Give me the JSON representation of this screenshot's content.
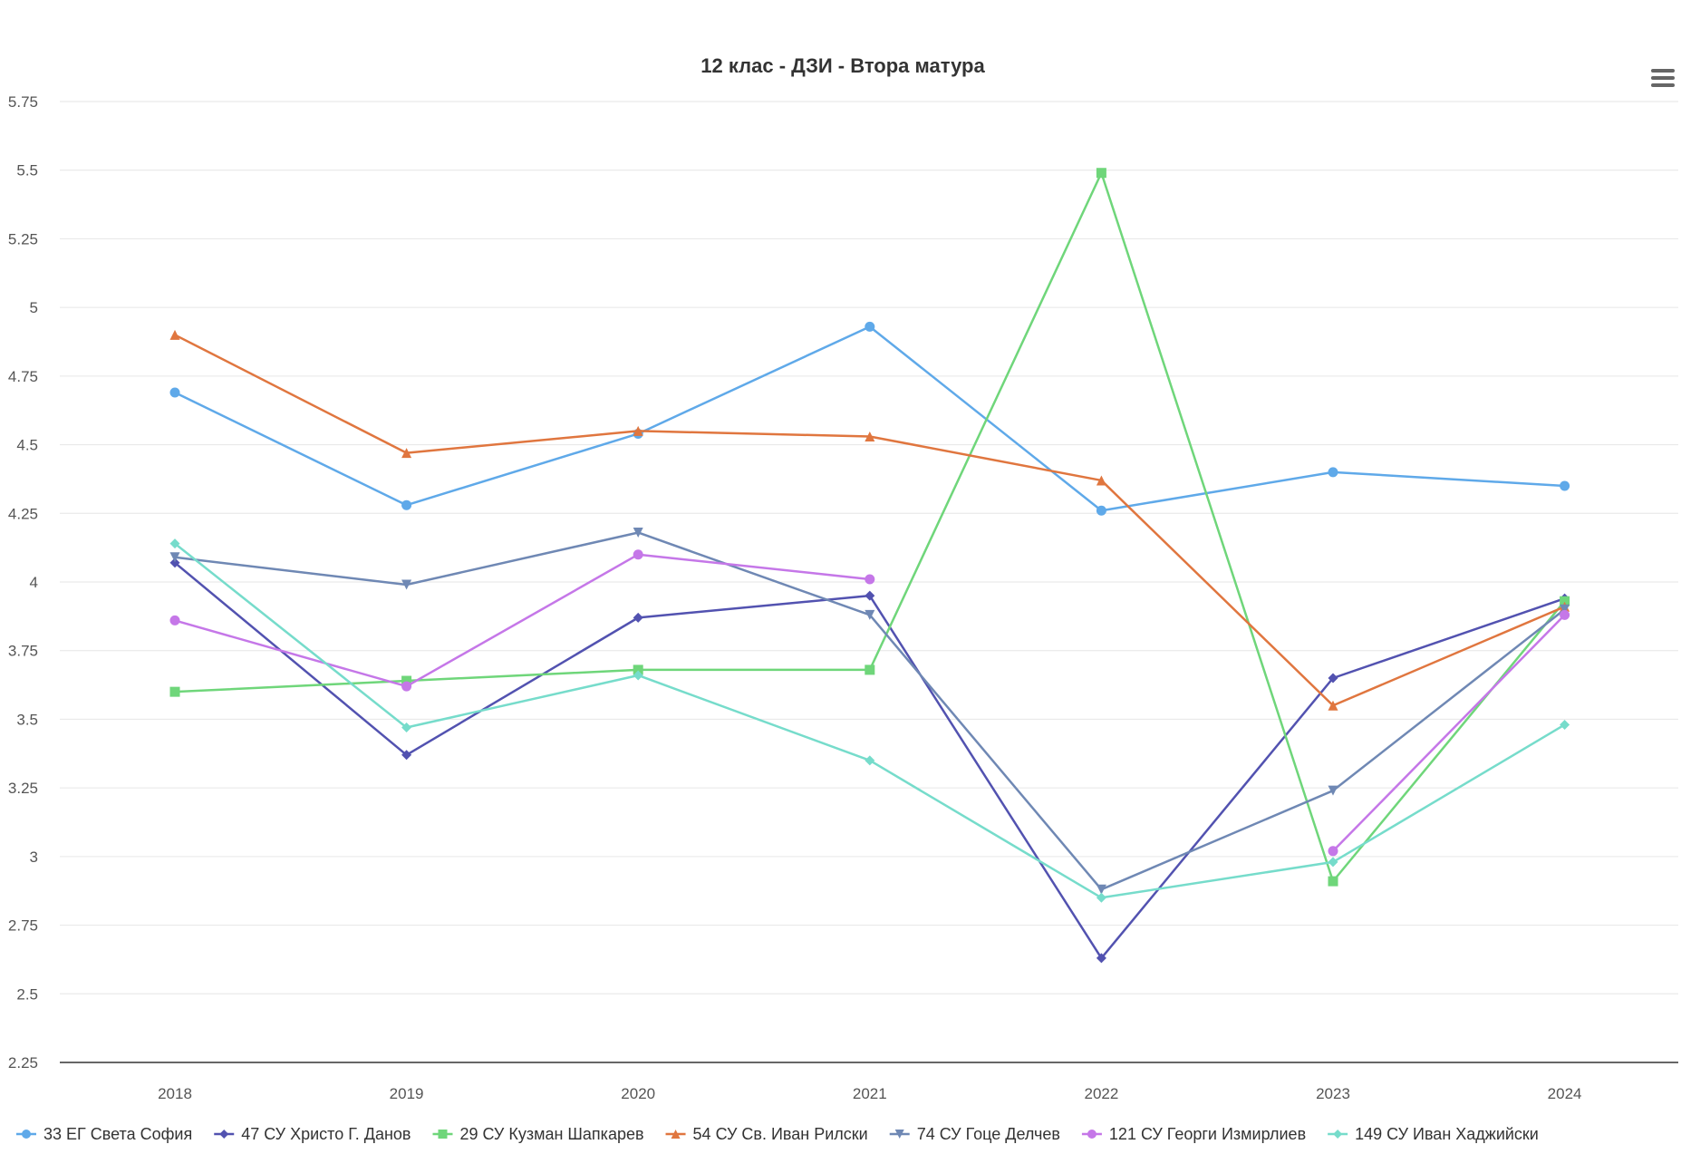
{
  "chart_data": {
    "type": "line",
    "title": "12 клас - ДЗИ - Втора матура",
    "xlabel": "",
    "ylabel": "",
    "categories": [
      "2018",
      "2019",
      "2020",
      "2021",
      "2022",
      "2023",
      "2024"
    ],
    "ylim": [
      2.25,
      5.75
    ],
    "yticks": [
      "2.25",
      "2.5",
      "2.75",
      "3",
      "3.25",
      "3.5",
      "3.75",
      "4",
      "4.25",
      "4.5",
      "4.75",
      "5",
      "5.25",
      "5.5",
      "5.75"
    ],
    "grid": true,
    "legend_position": "bottom",
    "series": [
      {
        "name": "33 ЕГ Света София",
        "color": "#5fa9e9",
        "marker": "circle",
        "values": [
          4.69,
          4.28,
          4.54,
          4.93,
          4.26,
          4.4,
          4.35
        ]
      },
      {
        "name": "47 СУ Христо Г. Данов",
        "color": "#5252b0",
        "marker": "diamond",
        "values": [
          4.07,
          3.37,
          3.87,
          3.95,
          2.63,
          3.65,
          3.94
        ]
      },
      {
        "name": "29 СУ Кузман Шапкарев",
        "color": "#6fd67a",
        "marker": "square",
        "values": [
          3.6,
          3.64,
          3.68,
          3.68,
          5.49,
          2.91,
          3.93
        ]
      },
      {
        "name": "54 СУ Св. Иван Рилски",
        "color": "#e0763f",
        "marker": "triangle",
        "values": [
          4.9,
          4.47,
          4.55,
          4.53,
          4.37,
          3.55,
          3.91
        ]
      },
      {
        "name": "74 СУ Гоце Делчев",
        "color": "#6f88b4",
        "marker": "triangle-down",
        "values": [
          4.09,
          3.99,
          4.18,
          3.88,
          2.88,
          3.24,
          3.9
        ]
      },
      {
        "name": "121 СУ Георги Измирлиев",
        "color": "#c577e8",
        "marker": "circle",
        "values": [
          3.86,
          3.62,
          4.1,
          4.01,
          null,
          3.02,
          3.88
        ]
      },
      {
        "name": "149 СУ Иван Хаджийски",
        "color": "#76dccb",
        "marker": "diamond",
        "values": [
          4.14,
          3.47,
          3.66,
          3.35,
          2.85,
          2.98,
          3.48
        ]
      }
    ]
  },
  "menu": {
    "icon": "hamburger-menu-icon"
  }
}
